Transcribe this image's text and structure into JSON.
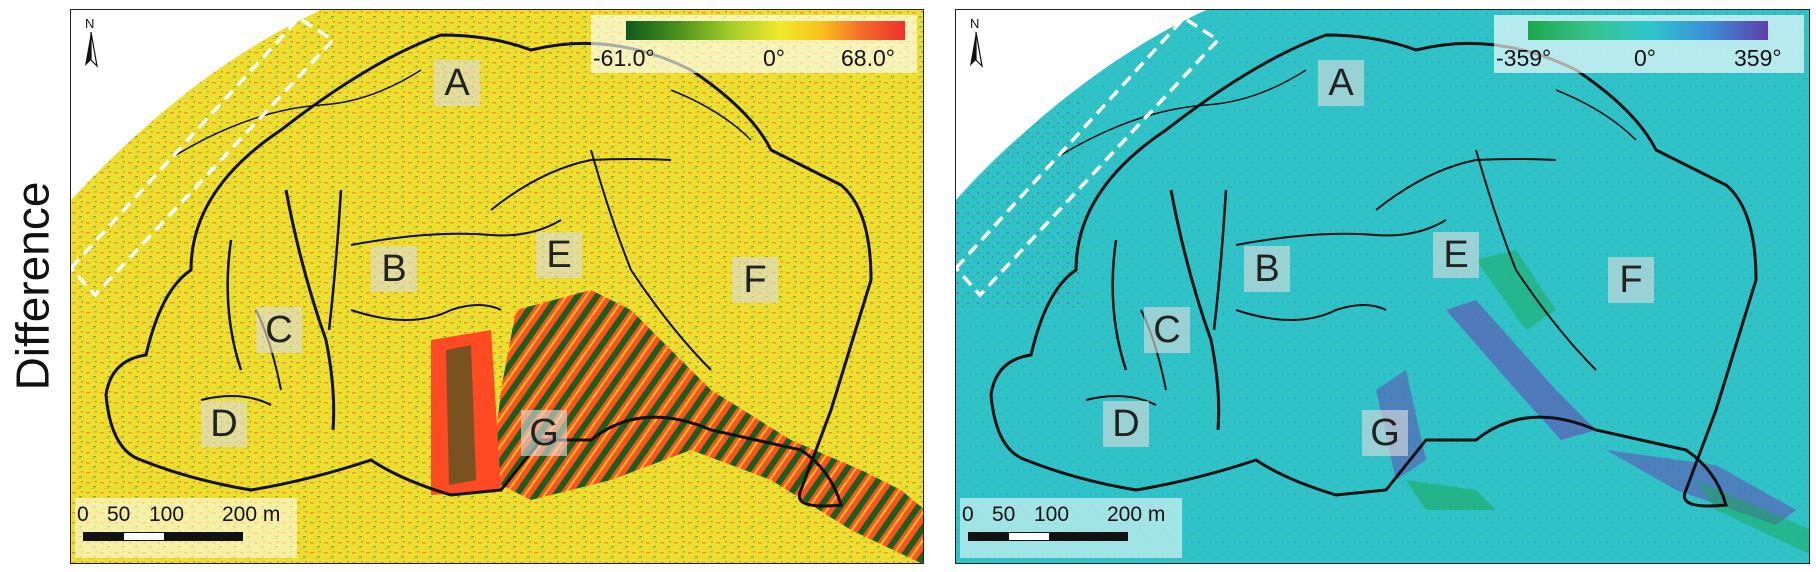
{
  "figure": {
    "row_label": "Difference"
  },
  "left_panel": {
    "colormap": [
      "#0d5a1c",
      "#4a8f1e",
      "#9fcb2a",
      "#f2ea2a",
      "#f7c21c",
      "#f36a2b",
      "#f0312b"
    ],
    "legend": {
      "min": "-61.0°",
      "mid": "0°",
      "max": "68.0°"
    },
    "base_color": "#ecdf2e",
    "accent_color": "#ff4a24",
    "dark_color": "#0d5a1c"
  },
  "right_panel": {
    "colormap": [
      "#1aa84a",
      "#38c28a",
      "#2ec7c9",
      "#3b8fd6",
      "#5e3fae"
    ],
    "legend": {
      "min": "-359°",
      "mid": "0°",
      "max": "359°"
    },
    "base_color": "#2fc3c8",
    "accent_color": "#6a3fb0",
    "dark_color": "#18a84a"
  },
  "region_labels": [
    "A",
    "B",
    "C",
    "D",
    "E",
    "F",
    "G"
  ],
  "scale_bar": {
    "ticks": [
      "0",
      "50",
      "100",
      "200 m"
    ]
  },
  "north_arrow": {
    "letter": "N",
    "icon": "north-arrow-icon"
  }
}
